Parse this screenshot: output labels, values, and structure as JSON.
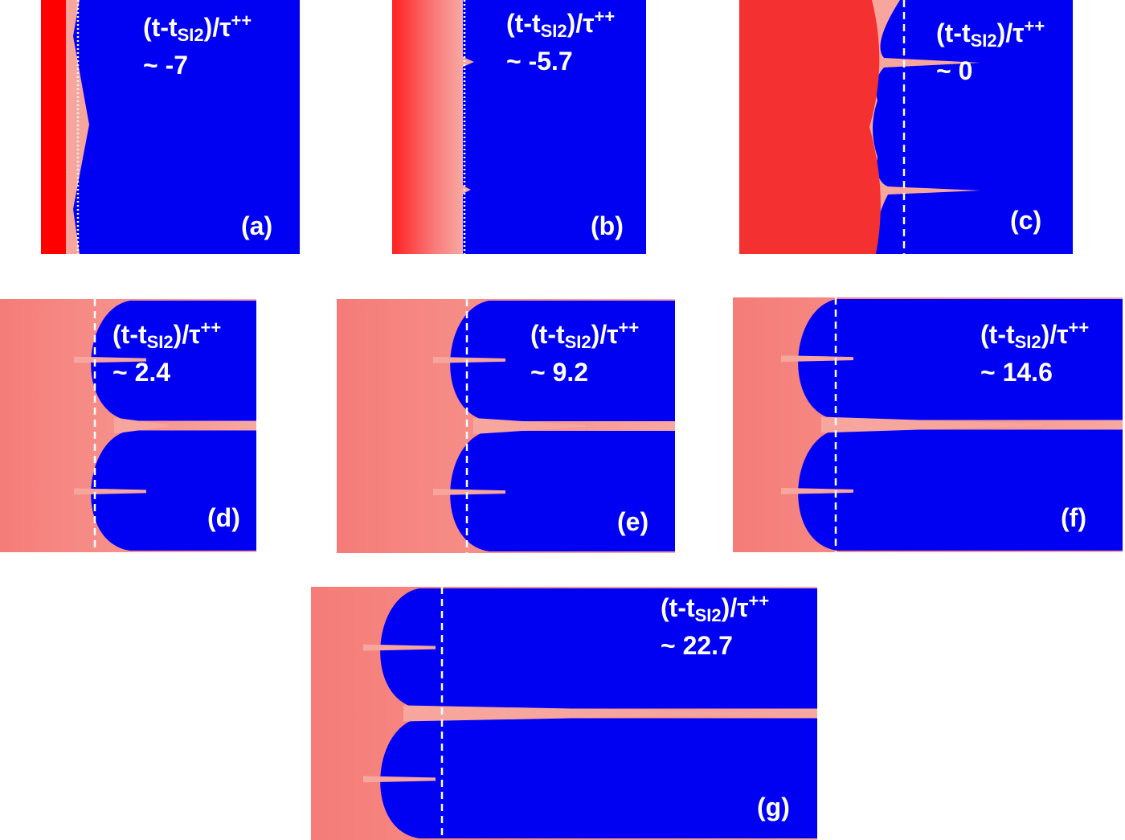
{
  "formula": {
    "main": "(t-t",
    "sub": "SI2",
    "close": ")/τ",
    "sup": "++"
  },
  "panels": [
    {
      "label": "(a)",
      "value": "~ -7"
    },
    {
      "label": "(b)",
      "value": "~ -5.7"
    },
    {
      "label": "(c)",
      "value": "~ 0"
    },
    {
      "label": "(d)",
      "value": "~ 2.4"
    },
    {
      "label": "(e)",
      "value": "~ 9.2"
    },
    {
      "label": "(f)",
      "value": "~ 14.6"
    },
    {
      "label": "(g)",
      "value": "~ 22.7"
    }
  ]
}
